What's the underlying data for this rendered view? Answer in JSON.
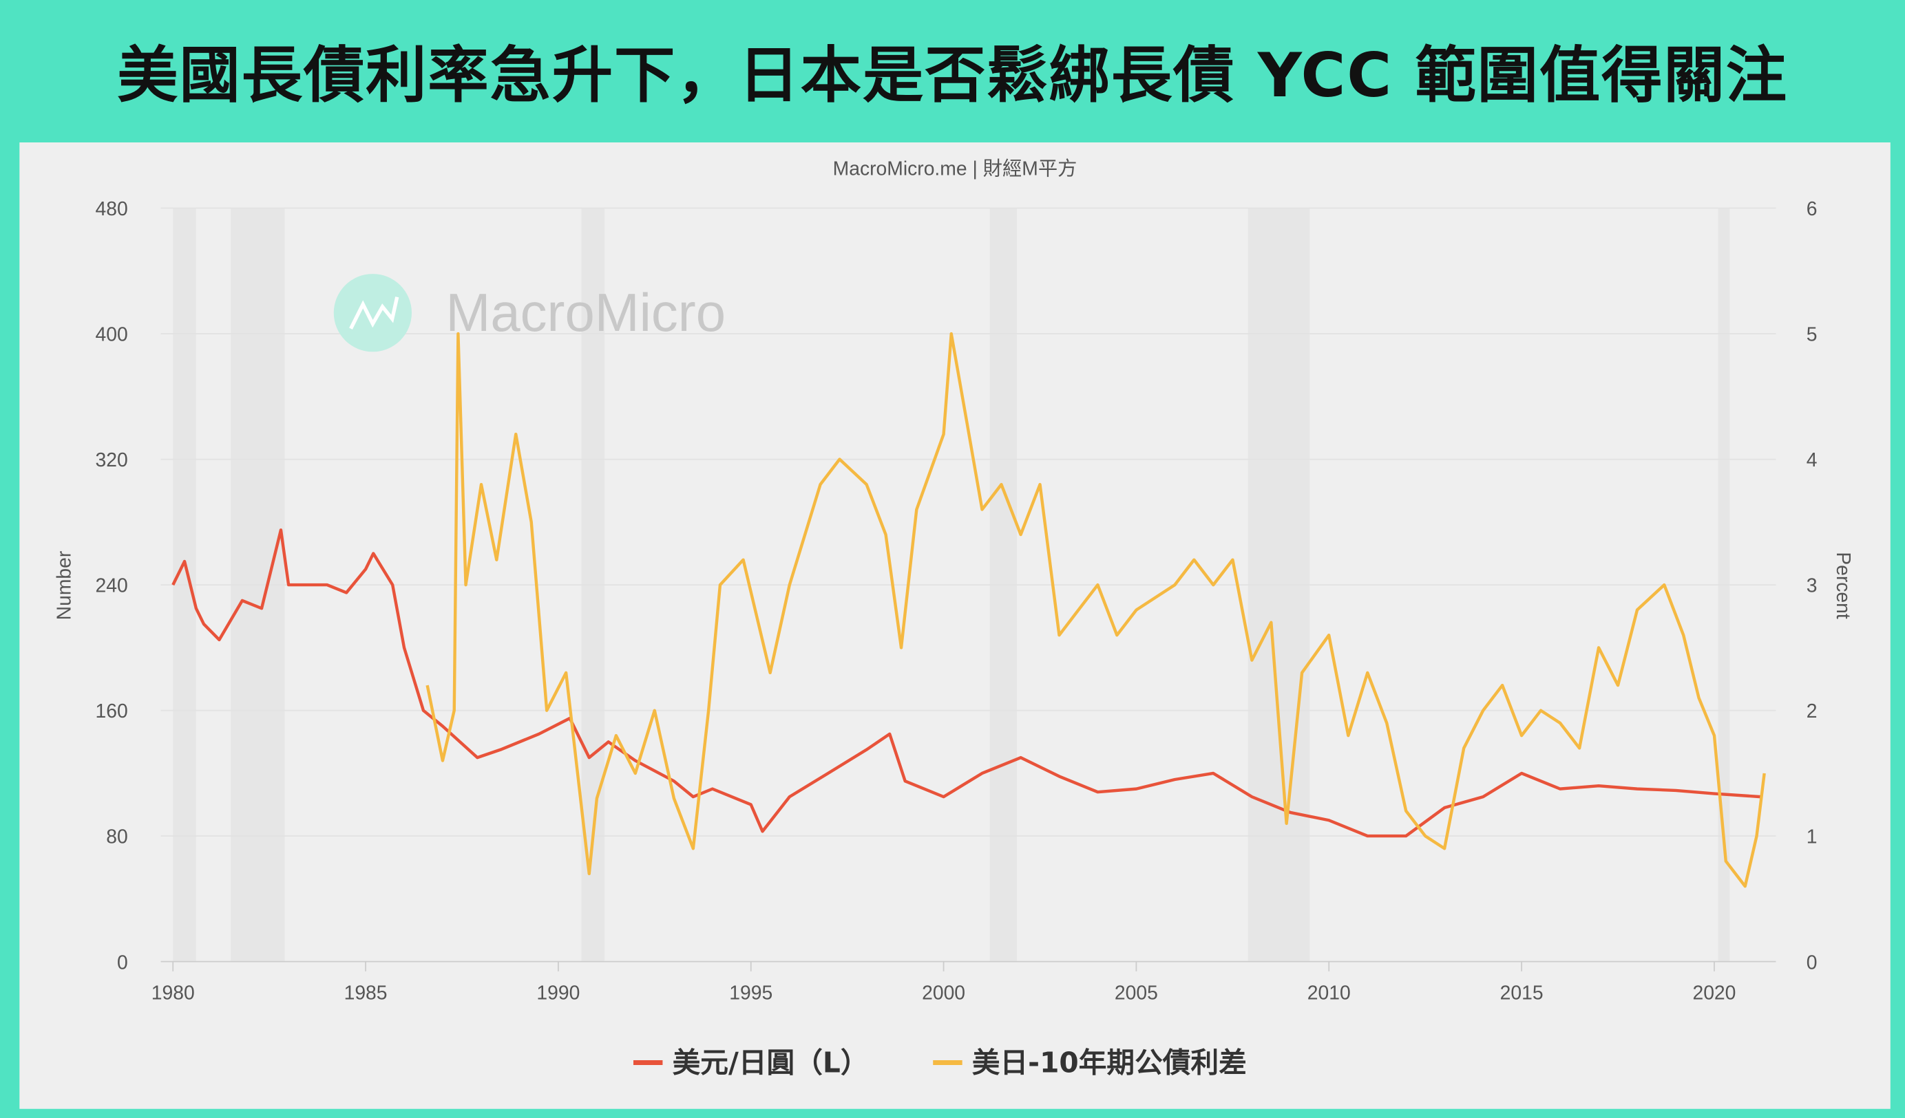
{
  "header": {
    "title": "美國長債利率急升下，日本是否鬆綁長債 YCC 範圍值得關注"
  },
  "chart_data": {
    "type": "line",
    "title": "MacroMicro.me | 財經M平方",
    "watermark": "MacroMicro",
    "xlim": [
      1980,
      2021.6
    ],
    "x_ticks": [
      "1980",
      "1985",
      "1990",
      "1995",
      "2000",
      "2005",
      "2010",
      "2015",
      "2020"
    ],
    "left_axis": {
      "label": "Number",
      "ylim": [
        0,
        480
      ],
      "ticks": [
        "0",
        "80",
        "160",
        "240",
        "320",
        "400",
        "480"
      ]
    },
    "right_axis": {
      "label": "Percent",
      "ylim": [
        0,
        6
      ],
      "ticks": [
        "0",
        "1",
        "2",
        "3",
        "4",
        "5",
        "6"
      ]
    },
    "grid": true,
    "legend_position": "bottom",
    "recession_bands": [
      [
        1980.0,
        1980.6
      ],
      [
        1981.5,
        1982.9
      ],
      [
        1990.6,
        1991.2
      ],
      [
        2001.2,
        2001.9
      ],
      [
        2007.9,
        2009.5
      ],
      [
        2020.1,
        2020.4
      ]
    ],
    "series": [
      {
        "name": "美元/日圓（L）",
        "axis": "left",
        "color": "#e8533a",
        "x": [
          1980,
          1980.3,
          1980.6,
          1980.8,
          1981.2,
          1981.8,
          1982.3,
          1982.8,
          1983.0,
          1984,
          1984.5,
          1985.0,
          1985.2,
          1985.7,
          1986.0,
          1986.5,
          1987,
          1987.9,
          1988.5,
          1989.5,
          1990.3,
          1990.8,
          1991.3,
          1992,
          1993,
          1993.5,
          1994,
          1995,
          1995.3,
          1996,
          1997,
          1998,
          1998.6,
          1999,
          2000,
          2001,
          2002,
          2003,
          2004,
          2005,
          2006,
          2007,
          2008,
          2009,
          2010,
          2011,
          2012,
          2013,
          2014,
          2015,
          2016,
          2017,
          2018,
          2019,
          2020,
          2021.2
        ],
        "y": [
          240,
          255,
          225,
          215,
          205,
          230,
          225,
          275,
          240,
          240,
          235,
          250,
          260,
          240,
          200,
          160,
          150,
          130,
          135,
          145,
          155,
          130,
          140,
          128,
          115,
          105,
          110,
          100,
          83,
          105,
          120,
          135,
          145,
          115,
          105,
          120,
          130,
          118,
          108,
          110,
          116,
          120,
          105,
          95,
          90,
          80,
          80,
          98,
          105,
          120,
          110,
          112,
          110,
          109,
          107,
          105
        ]
      },
      {
        "name": "美日-10年期公債利差",
        "axis": "right",
        "color": "#f5b942",
        "x": [
          1986.6,
          1987.0,
          1987.3,
          1987.4,
          1987.6,
          1988,
          1988.4,
          1988.9,
          1989.3,
          1989.7,
          1990.2,
          1990.5,
          1990.8,
          1991,
          1991.5,
          1992,
          1992.5,
          1993,
          1993.5,
          1993.9,
          1994.2,
          1994.8,
          1995.5,
          1996,
          1996.8,
          1997.3,
          1998,
          1998.5,
          1998.9,
          1999.3,
          2000,
          2000.2,
          2000.6,
          2001,
          2001.5,
          2002,
          2002.5,
          2003,
          2003.5,
          2004,
          2004.5,
          2005,
          2006,
          2006.5,
          2007,
          2007.5,
          2008,
          2008.5,
          2008.9,
          2009.3,
          2010,
          2010.5,
          2011,
          2011.5,
          2012,
          2012.5,
          2013,
          2013.5,
          2014,
          2014.5,
          2015,
          2015.5,
          2016,
          2016.5,
          2017,
          2017.5,
          2018,
          2018.7,
          2019.2,
          2019.6,
          2020,
          2020.3,
          2020.8,
          2021.1,
          2021.3
        ],
        "y": [
          2.2,
          1.6,
          2.0,
          5.0,
          3.0,
          3.8,
          3.2,
          4.2,
          3.5,
          2.0,
          2.3,
          1.5,
          0.7,
          1.3,
          1.8,
          1.5,
          2.0,
          1.3,
          0.9,
          2.0,
          3.0,
          3.2,
          2.3,
          3.0,
          3.8,
          4.0,
          3.8,
          3.4,
          2.5,
          3.6,
          4.2,
          5.0,
          4.3,
          3.6,
          3.8,
          3.4,
          3.8,
          2.6,
          2.8,
          3.0,
          2.6,
          2.8,
          3.0,
          3.2,
          3.0,
          3.2,
          2.4,
          2.7,
          1.1,
          2.3,
          2.6,
          1.8,
          2.3,
          1.9,
          1.2,
          1.0,
          0.9,
          1.7,
          2.0,
          2.2,
          1.8,
          2.0,
          1.9,
          1.7,
          2.5,
          2.2,
          2.8,
          3.0,
          2.6,
          2.1,
          1.8,
          0.8,
          0.6,
          1.0,
          1.5
        ]
      }
    ]
  }
}
